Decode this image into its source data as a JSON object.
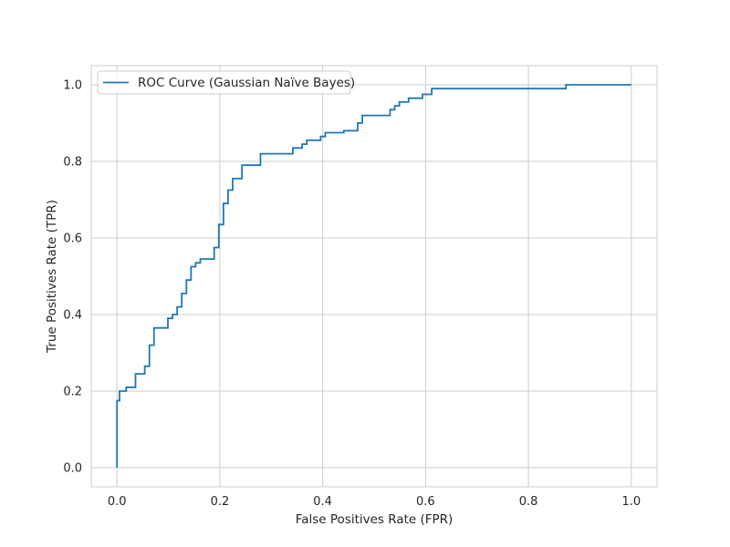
{
  "chart_data": {
    "type": "line",
    "title": "",
    "xlabel": "False Positives Rate (FPR)",
    "ylabel": "True Positives Rate (TPR)",
    "xlim": [
      -0.05,
      1.05
    ],
    "ylim": [
      -0.05,
      1.05
    ],
    "xticks": [
      0.0,
      0.2,
      0.4,
      0.6,
      0.8,
      1.0
    ],
    "yticks": [
      0.0,
      0.2,
      0.4,
      0.6,
      0.8,
      1.0
    ],
    "xtick_labels": [
      "0.0",
      "0.2",
      "0.4",
      "0.6",
      "0.8",
      "1.0"
    ],
    "ytick_labels": [
      "0.0",
      "0.2",
      "0.4",
      "0.6",
      "0.8",
      "1.0"
    ],
    "grid": true,
    "legend_position": "upper-left",
    "series": [
      {
        "name": "ROC Curve (Gaussian Naïve Bayes)",
        "color": "#1f77b4",
        "drawstyle": "steps",
        "x": [
          0.0,
          0.0,
          0.005,
          0.005,
          0.018,
          0.018,
          0.036,
          0.036,
          0.054,
          0.054,
          0.063,
          0.063,
          0.072,
          0.072,
          0.099,
          0.099,
          0.108,
          0.108,
          0.117,
          0.117,
          0.126,
          0.126,
          0.135,
          0.135,
          0.144,
          0.144,
          0.153,
          0.153,
          0.162,
          0.162,
          0.189,
          0.189,
          0.198,
          0.198,
          0.207,
          0.207,
          0.216,
          0.216,
          0.225,
          0.225,
          0.243,
          0.243,
          0.279,
          0.279,
          0.342,
          0.342,
          0.36,
          0.36,
          0.369,
          0.369,
          0.396,
          0.396,
          0.405,
          0.405,
          0.441,
          0.441,
          0.468,
          0.468,
          0.477,
          0.477,
          0.531,
          0.531,
          0.54,
          0.54,
          0.549,
          0.549,
          0.567,
          0.567,
          0.594,
          0.594,
          0.612,
          0.612,
          0.873,
          0.873,
          1.0
        ],
        "y": [
          0.0,
          0.175,
          0.175,
          0.2,
          0.2,
          0.21,
          0.21,
          0.245,
          0.245,
          0.265,
          0.265,
          0.32,
          0.32,
          0.365,
          0.365,
          0.39,
          0.39,
          0.4,
          0.4,
          0.42,
          0.42,
          0.455,
          0.455,
          0.49,
          0.49,
          0.525,
          0.525,
          0.535,
          0.535,
          0.545,
          0.545,
          0.575,
          0.575,
          0.635,
          0.635,
          0.69,
          0.69,
          0.725,
          0.725,
          0.755,
          0.755,
          0.79,
          0.79,
          0.82,
          0.82,
          0.835,
          0.835,
          0.845,
          0.845,
          0.855,
          0.855,
          0.865,
          0.865,
          0.875,
          0.875,
          0.88,
          0.88,
          0.9,
          0.9,
          0.92,
          0.92,
          0.935,
          0.935,
          0.945,
          0.945,
          0.955,
          0.955,
          0.965,
          0.965,
          0.975,
          0.975,
          0.99,
          0.99,
          1.0,
          1.0
        ]
      }
    ]
  }
}
